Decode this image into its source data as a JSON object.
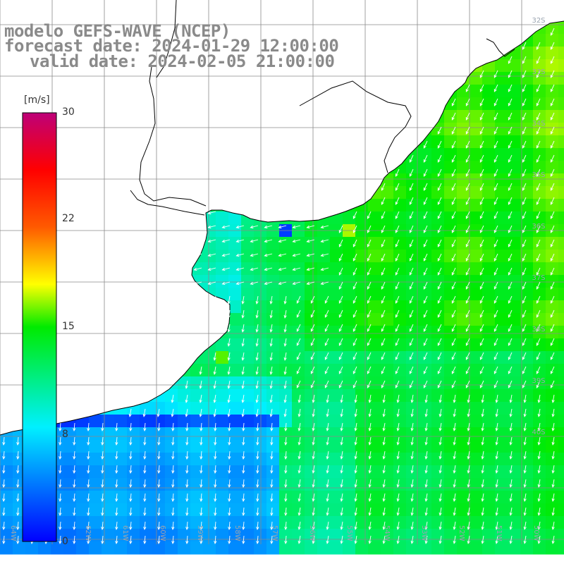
{
  "title": {
    "line1": "modelo GEFS-WAVE (NCEP)",
    "line2": "forecast date: 2024-01-29 12:00:00",
    "line3": "valid date: 2024-02-05 21:00:00"
  },
  "colorbar": {
    "unit": "[m/s]",
    "ticks": [
      "30",
      "22",
      "15",
      "8",
      "0"
    ]
  },
  "latitude_labels": [
    "32S",
    "33S",
    "34S",
    "35S",
    "36S",
    "37S",
    "38S",
    "39S",
    "40S"
  ],
  "longitude_labels": [
    "64W",
    "63W",
    "62W",
    "61W",
    "60W",
    "59W",
    "58W",
    "57W",
    "56W",
    "55W",
    "54W",
    "53W",
    "52W",
    "51W",
    "50W"
  ],
  "colors": {
    "land": "#ffffff",
    "grid": "#8a8a8a",
    "coast": "#000000",
    "title": "#8a8a8a",
    "arrow": "#ffffff"
  }
}
